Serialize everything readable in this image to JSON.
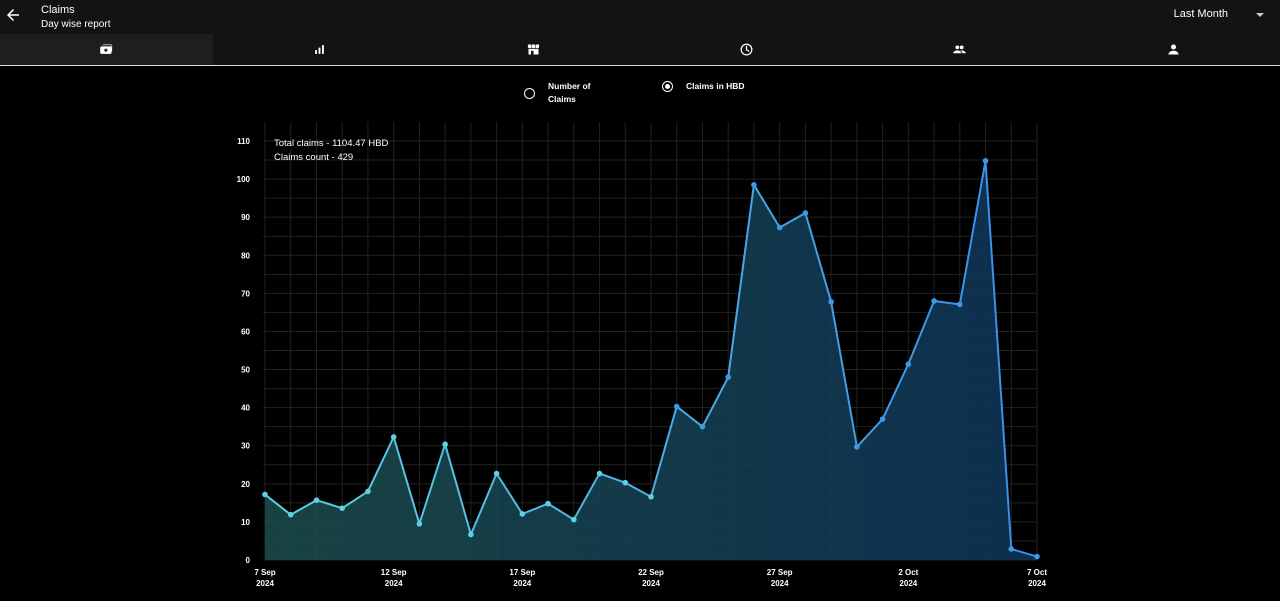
{
  "header": {
    "title": "Claims",
    "subtitle": "Day wise report",
    "period_label": "Last Month"
  },
  "tabs": [
    {
      "name": "claims-tab",
      "icon": "wallet-icon",
      "active": true
    },
    {
      "name": "stats-tab",
      "icon": "bar-chart-icon",
      "active": false
    },
    {
      "name": "store-tab",
      "icon": "storefront-icon",
      "active": false
    },
    {
      "name": "history-tab",
      "icon": "clock-icon",
      "active": false
    },
    {
      "name": "group-tab",
      "icon": "group-icon",
      "active": false
    },
    {
      "name": "profile-tab",
      "icon": "person-icon",
      "active": false
    }
  ],
  "radio": {
    "count_label": "Number of Claims",
    "hbd_label": "Claims in HBD",
    "selected": "hbd"
  },
  "info": {
    "total": "Total claims - 1104.47 HBD",
    "count": "Claims count - 429"
  },
  "colors": {
    "line": "#3aa7e8",
    "accent_dark": "#131313"
  },
  "chart_data": {
    "type": "area",
    "ylim": [
      0,
      110
    ],
    "yticks": [
      0,
      10,
      20,
      30,
      40,
      50,
      60,
      70,
      80,
      90,
      100,
      110
    ],
    "xlim": [
      "2024-09-07",
      "2024-10-07"
    ],
    "xticks": [
      {
        "date": "2024-09-07",
        "label1": "7 Sep",
        "label2": "2024"
      },
      {
        "date": "2024-09-12",
        "label1": "12 Sep",
        "label2": "2024"
      },
      {
        "date": "2024-09-17",
        "label1": "17 Sep",
        "label2": "2024"
      },
      {
        "date": "2024-09-22",
        "label1": "22 Sep",
        "label2": "2024"
      },
      {
        "date": "2024-09-27",
        "label1": "27 Sep",
        "label2": "2024"
      },
      {
        "date": "2024-10-02",
        "label1": "2 Oct",
        "label2": "2024"
      },
      {
        "date": "2024-10-07",
        "label1": "7 Oct",
        "label2": "2024"
      }
    ],
    "series": [
      {
        "x": [
          "2024-09-07",
          "2024-09-08",
          "2024-09-09",
          "2024-09-10",
          "2024-09-11",
          "2024-09-12",
          "2024-09-13",
          "2024-09-14",
          "2024-09-15",
          "2024-09-16",
          "2024-09-17",
          "2024-09-18",
          "2024-09-19",
          "2024-09-20",
          "2024-09-21",
          "2024-09-22",
          "2024-09-23",
          "2024-09-24",
          "2024-09-25",
          "2024-09-26",
          "2024-09-27",
          "2024-09-28",
          "2024-09-29",
          "2024-09-30",
          "2024-10-01",
          "2024-10-02",
          "2024-10-03",
          "2024-10-04",
          "2024-10-05",
          "2024-10-06",
          "2024-10-07"
        ],
        "values": [
          17.2,
          11.9,
          15.7,
          13.6,
          18.0,
          32.3,
          9.5,
          30.4,
          6.7,
          22.7,
          12.1,
          14.8,
          10.6,
          22.7,
          20.3,
          16.6,
          40.3,
          35.0,
          48.0,
          98.5,
          87.3,
          91.1,
          67.8,
          29.7,
          37.0,
          51.4,
          68.0,
          67.1,
          104.8,
          2.9,
          0.9
        ]
      }
    ]
  }
}
